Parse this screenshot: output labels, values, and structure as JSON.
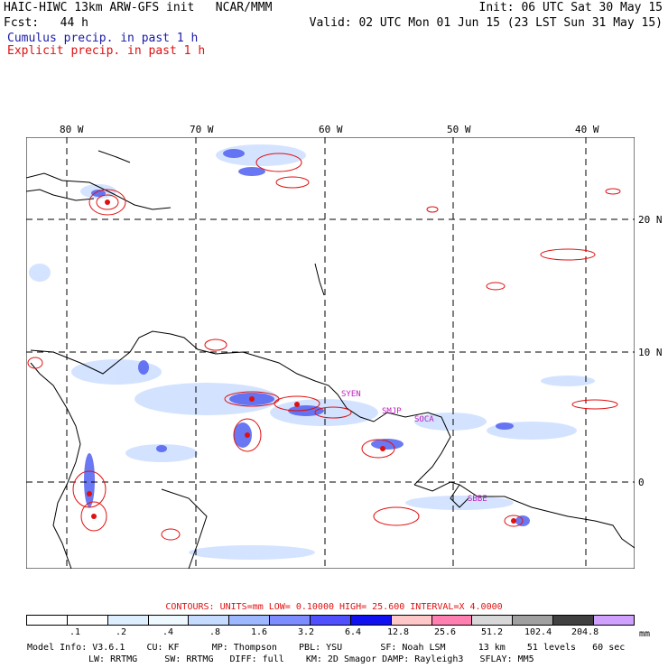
{
  "header": {
    "title_left": "HAIC-HIWC 13km ARW-GFS init   NCAR/MMM",
    "init": "Init: 06 UTC Sat 30 May 15",
    "fcst": "Fcst:   44 h",
    "valid": "Valid: 02 UTC Mon 01 Jun 15 (23 LST Sun 31 May 15)",
    "cumulus": "Cumulus precip. in past 1 h",
    "explicit": "Explicit precip. in past 1 h"
  },
  "map": {
    "lon_labels": [
      "80 W",
      "70 W",
      "60 W",
      "50 W",
      "40 W"
    ],
    "lat_labels": [
      "20 N",
      "10 N",
      "0"
    ],
    "place_labels": [
      "SYEN",
      "SMJP",
      "SOCA",
      "SBBE"
    ]
  },
  "contours": {
    "label": "CONTOURS:  UNITS=mm  LOW= 0.10000      HIGH=  25.600      INTERVAL=X  4.0000"
  },
  "scale": {
    "colors": [
      "#ffffff",
      "#ffffff",
      "#ddeeff",
      "#eef8ff",
      "#c6dcff",
      "#9eb8ff",
      "#7d8cff",
      "#5050ff",
      "#1010f0",
      "#ffc8c8",
      "#ff80b0",
      "#d8d8d8",
      "#a0a0a0",
      "#404040",
      "#d0a0ff"
    ],
    "ticks": [
      ".1",
      ".2",
      ".4",
      ".8",
      "1.6",
      "3.2",
      "6.4",
      "12.8",
      "25.6",
      "51.2",
      "102.4",
      "204.8"
    ],
    "units": "mm"
  },
  "model_info": {
    "line1": "Model Info: V3.6.1    CU: KF      MP: Thompson    PBL: YSU       SF: Noah LSM      13 km    51 levels   60 sec",
    "line2": "LW: RRTMG     SW: RRTMG   DIFF: full    KM: 2D Smagor DAMP: Rayleigh3   SFLAY: MM5"
  }
}
